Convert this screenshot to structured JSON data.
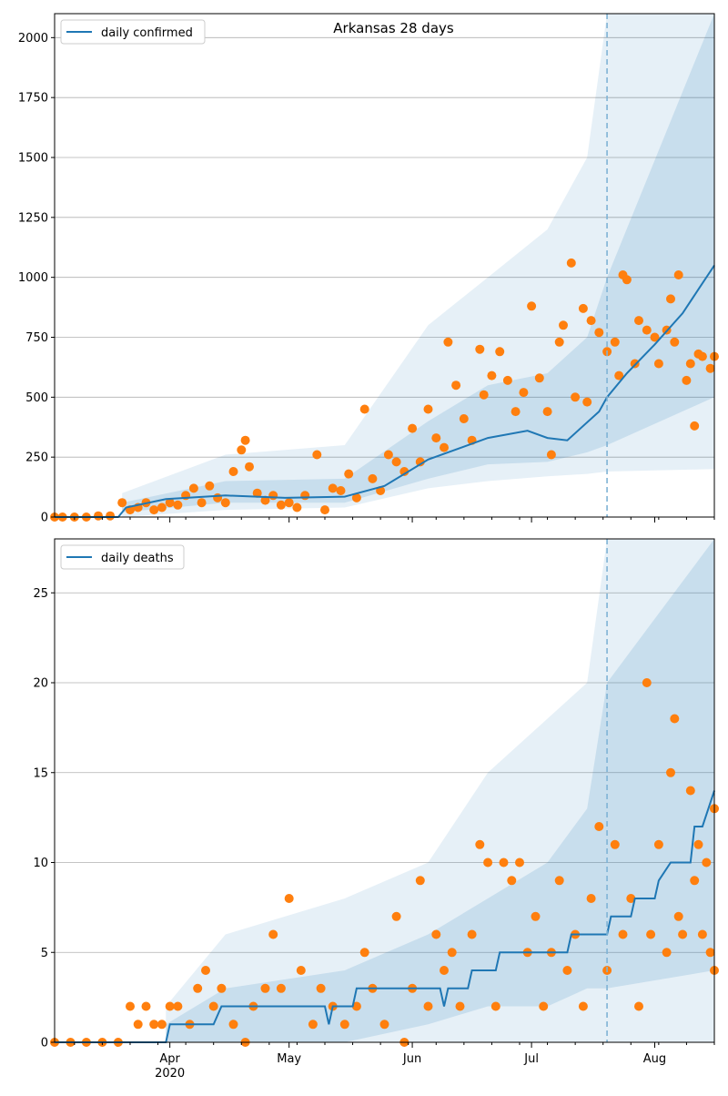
{
  "chart_data": [
    {
      "type": "line",
      "title": "Arkansas 28 days",
      "legend": {
        "position": "top-left",
        "label": "daily confirmed"
      },
      "series_color": "#1f77b4",
      "points_color": "#ff7f0e",
      "grid": "y",
      "xlim": [
        "2020-03-03",
        "2020-08-16"
      ],
      "ylim": [
        0,
        2100
      ],
      "yticks": [
        "0",
        "250",
        "500",
        "750",
        "1000",
        "1250",
        "1500",
        "1750",
        "2000"
      ],
      "vline_date": "2020-07-20",
      "line": [
        [
          "2020-03-03",
          0
        ],
        [
          "2020-03-19",
          0
        ],
        [
          "2020-03-21",
          40
        ],
        [
          "2020-03-31",
          75
        ],
        [
          "2020-04-15",
          90
        ],
        [
          "2020-04-30",
          80
        ],
        [
          "2020-05-15",
          85
        ],
        [
          "2020-05-25",
          130
        ],
        [
          "2020-06-05",
          240
        ],
        [
          "2020-06-20",
          330
        ],
        [
          "2020-06-30",
          360
        ],
        [
          "2020-07-05",
          330
        ],
        [
          "2020-07-10",
          320
        ],
        [
          "2020-07-18",
          440
        ],
        [
          "2020-07-20",
          500
        ],
        [
          "2020-07-25",
          600
        ],
        [
          "2020-08-01",
          720
        ],
        [
          "2020-08-08",
          850
        ],
        [
          "2020-08-12",
          950
        ],
        [
          "2020-08-16",
          1050
        ]
      ],
      "band_outer": [
        [
          "2020-03-20",
          0,
          100
        ],
        [
          "2020-04-15",
          30,
          260
        ],
        [
          "2020-05-15",
          40,
          300
        ],
        [
          "2020-06-05",
          120,
          800
        ],
        [
          "2020-06-20",
          150,
          1000
        ],
        [
          "2020-07-05",
          170,
          1200
        ],
        [
          "2020-07-15",
          180,
          1500
        ],
        [
          "2020-07-20",
          190,
          2100
        ],
        [
          "2020-08-16",
          200,
          2100
        ]
      ],
      "band_inner": [
        [
          "2020-03-20",
          20,
          60
        ],
        [
          "2020-04-15",
          60,
          150
        ],
        [
          "2020-05-15",
          60,
          160
        ],
        [
          "2020-06-05",
          160,
          400
        ],
        [
          "2020-06-20",
          220,
          550
        ],
        [
          "2020-07-05",
          230,
          600
        ],
        [
          "2020-07-15",
          270,
          750
        ],
        [
          "2020-07-20",
          300,
          1000
        ],
        [
          "2020-08-16",
          500,
          2100
        ]
      ],
      "points": [
        [
          "2020-03-03",
          0
        ],
        [
          "2020-03-05",
          0
        ],
        [
          "2020-03-08",
          0
        ],
        [
          "2020-03-11",
          0
        ],
        [
          "2020-03-14",
          5
        ],
        [
          "2020-03-17",
          5
        ],
        [
          "2020-03-20",
          60
        ],
        [
          "2020-03-22",
          30
        ],
        [
          "2020-03-24",
          40
        ],
        [
          "2020-03-26",
          60
        ],
        [
          "2020-03-28",
          30
        ],
        [
          "2020-03-30",
          40
        ],
        [
          "2020-04-01",
          60
        ],
        [
          "2020-04-03",
          50
        ],
        [
          "2020-04-05",
          90
        ],
        [
          "2020-04-07",
          120
        ],
        [
          "2020-04-09",
          60
        ],
        [
          "2020-04-11",
          130
        ],
        [
          "2020-04-13",
          80
        ],
        [
          "2020-04-15",
          60
        ],
        [
          "2020-04-17",
          190
        ],
        [
          "2020-04-19",
          280
        ],
        [
          "2020-04-20",
          320
        ],
        [
          "2020-04-21",
          210
        ],
        [
          "2020-04-23",
          100
        ],
        [
          "2020-04-25",
          70
        ],
        [
          "2020-04-27",
          90
        ],
        [
          "2020-04-29",
          50
        ],
        [
          "2020-05-01",
          60
        ],
        [
          "2020-05-03",
          40
        ],
        [
          "2020-05-05",
          90
        ],
        [
          "2020-05-08",
          260
        ],
        [
          "2020-05-10",
          30
        ],
        [
          "2020-05-12",
          120
        ],
        [
          "2020-05-14",
          110
        ],
        [
          "2020-05-16",
          180
        ],
        [
          "2020-05-18",
          80
        ],
        [
          "2020-05-20",
          450
        ],
        [
          "2020-05-22",
          160
        ],
        [
          "2020-05-24",
          110
        ],
        [
          "2020-05-26",
          260
        ],
        [
          "2020-05-28",
          230
        ],
        [
          "2020-05-30",
          190
        ],
        [
          "2020-06-01",
          370
        ],
        [
          "2020-06-03",
          230
        ],
        [
          "2020-06-05",
          450
        ],
        [
          "2020-06-07",
          330
        ],
        [
          "2020-06-09",
          290
        ],
        [
          "2020-06-10",
          730
        ],
        [
          "2020-06-12",
          550
        ],
        [
          "2020-06-14",
          410
        ],
        [
          "2020-06-16",
          320
        ],
        [
          "2020-06-18",
          700
        ],
        [
          "2020-06-19",
          510
        ],
        [
          "2020-06-21",
          590
        ],
        [
          "2020-06-23",
          690
        ],
        [
          "2020-06-25",
          570
        ],
        [
          "2020-06-27",
          440
        ],
        [
          "2020-06-29",
          520
        ],
        [
          "2020-07-01",
          880
        ],
        [
          "2020-07-03",
          580
        ],
        [
          "2020-07-05",
          440
        ],
        [
          "2020-07-06",
          260
        ],
        [
          "2020-07-08",
          730
        ],
        [
          "2020-07-09",
          800
        ],
        [
          "2020-07-11",
          1060
        ],
        [
          "2020-07-12",
          500
        ],
        [
          "2020-07-14",
          870
        ],
        [
          "2020-07-15",
          480
        ],
        [
          "2020-07-16",
          820
        ],
        [
          "2020-07-18",
          770
        ],
        [
          "2020-07-20",
          690
        ],
        [
          "2020-07-22",
          730
        ],
        [
          "2020-07-23",
          590
        ],
        [
          "2020-07-24",
          1010
        ],
        [
          "2020-07-25",
          990
        ],
        [
          "2020-07-27",
          640
        ],
        [
          "2020-07-28",
          820
        ],
        [
          "2020-07-30",
          780
        ],
        [
          "2020-08-01",
          750
        ],
        [
          "2020-08-02",
          640
        ],
        [
          "2020-08-04",
          780
        ],
        [
          "2020-08-05",
          910
        ],
        [
          "2020-08-06",
          730
        ],
        [
          "2020-08-07",
          1010
        ],
        [
          "2020-08-09",
          570
        ],
        [
          "2020-08-10",
          640
        ],
        [
          "2020-08-11",
          380
        ],
        [
          "2020-08-12",
          680
        ],
        [
          "2020-08-13",
          670
        ],
        [
          "2020-08-15",
          620
        ],
        [
          "2020-08-16",
          670
        ]
      ]
    },
    {
      "type": "line",
      "title": "",
      "legend": {
        "position": "top-left",
        "label": "daily deaths"
      },
      "series_color": "#1f77b4",
      "points_color": "#ff7f0e",
      "grid": "y",
      "xlim": [
        "2020-03-03",
        "2020-08-16"
      ],
      "ylim": [
        0,
        28
      ],
      "yticks": [
        "0",
        "5",
        "10",
        "15",
        "20",
        "25"
      ],
      "xticks": [
        "Apr",
        "May",
        "Jun",
        "Jul",
        "Aug"
      ],
      "xyear": "2020",
      "vline_date": "2020-07-20",
      "line": [
        [
          "2020-03-03",
          0
        ],
        [
          "2020-03-31",
          0
        ],
        [
          "2020-04-01",
          1
        ],
        [
          "2020-04-12",
          1
        ],
        [
          "2020-04-14",
          2
        ],
        [
          "2020-05-10",
          2
        ],
        [
          "2020-05-11",
          1
        ],
        [
          "2020-05-12",
          2
        ],
        [
          "2020-05-17",
          2
        ],
        [
          "2020-05-18",
          3
        ],
        [
          "2020-06-08",
          3
        ],
        [
          "2020-06-09",
          2
        ],
        [
          "2020-06-10",
          3
        ],
        [
          "2020-06-15",
          3
        ],
        [
          "2020-06-16",
          4
        ],
        [
          "2020-06-22",
          4
        ],
        [
          "2020-06-23",
          5
        ],
        [
          "2020-07-10",
          5
        ],
        [
          "2020-07-11",
          6
        ],
        [
          "2020-07-20",
          6
        ],
        [
          "2020-07-21",
          7
        ],
        [
          "2020-07-26",
          7
        ],
        [
          "2020-07-27",
          8
        ],
        [
          "2020-08-01",
          8
        ],
        [
          "2020-08-02",
          9
        ],
        [
          "2020-08-05",
          10
        ],
        [
          "2020-08-10",
          10
        ],
        [
          "2020-08-11",
          12
        ],
        [
          "2020-08-13",
          12
        ],
        [
          "2020-08-16",
          14
        ]
      ],
      "band_outer": [
        [
          "2020-03-31",
          0,
          2
        ],
        [
          "2020-04-15",
          0,
          6
        ],
        [
          "2020-05-15",
          0,
          8
        ],
        [
          "2020-06-05",
          0,
          10
        ],
        [
          "2020-06-20",
          0,
          15
        ],
        [
          "2020-07-05",
          0,
          18
        ],
        [
          "2020-07-15",
          0,
          20
        ],
        [
          "2020-07-20",
          0,
          28
        ],
        [
          "2020-08-16",
          0,
          28
        ]
      ],
      "band_inner": [
        [
          "2020-03-31",
          0,
          1
        ],
        [
          "2020-04-15",
          0,
          3
        ],
        [
          "2020-05-15",
          0,
          4
        ],
        [
          "2020-06-05",
          1,
          6
        ],
        [
          "2020-06-20",
          2,
          8
        ],
        [
          "2020-07-05",
          2,
          10
        ],
        [
          "2020-07-15",
          3,
          13
        ],
        [
          "2020-07-20",
          3,
          20
        ],
        [
          "2020-08-16",
          4,
          28
        ]
      ],
      "points": [
        [
          "2020-03-03",
          0
        ],
        [
          "2020-03-07",
          0
        ],
        [
          "2020-03-11",
          0
        ],
        [
          "2020-03-15",
          0
        ],
        [
          "2020-03-19",
          0
        ],
        [
          "2020-03-22",
          2
        ],
        [
          "2020-03-24",
          1
        ],
        [
          "2020-03-26",
          2
        ],
        [
          "2020-03-28",
          1
        ],
        [
          "2020-03-30",
          1
        ],
        [
          "2020-04-01",
          2
        ],
        [
          "2020-04-03",
          2
        ],
        [
          "2020-04-06",
          1
        ],
        [
          "2020-04-08",
          3
        ],
        [
          "2020-04-10",
          4
        ],
        [
          "2020-04-12",
          2
        ],
        [
          "2020-04-14",
          3
        ],
        [
          "2020-04-17",
          1
        ],
        [
          "2020-04-20",
          0
        ],
        [
          "2020-04-22",
          2
        ],
        [
          "2020-04-25",
          3
        ],
        [
          "2020-04-27",
          6
        ],
        [
          "2020-04-29",
          3
        ],
        [
          "2020-05-01",
          8
        ],
        [
          "2020-05-04",
          4
        ],
        [
          "2020-05-07",
          1
        ],
        [
          "2020-05-09",
          3
        ],
        [
          "2020-05-12",
          2
        ],
        [
          "2020-05-15",
          1
        ],
        [
          "2020-05-18",
          2
        ],
        [
          "2020-05-20",
          5
        ],
        [
          "2020-05-22",
          3
        ],
        [
          "2020-05-25",
          1
        ],
        [
          "2020-05-28",
          7
        ],
        [
          "2020-05-30",
          0
        ],
        [
          "2020-06-01",
          3
        ],
        [
          "2020-06-03",
          9
        ],
        [
          "2020-06-05",
          2
        ],
        [
          "2020-06-07",
          6
        ],
        [
          "2020-06-09",
          4
        ],
        [
          "2020-06-11",
          5
        ],
        [
          "2020-06-13",
          2
        ],
        [
          "2020-06-16",
          6
        ],
        [
          "2020-06-18",
          11
        ],
        [
          "2020-06-20",
          10
        ],
        [
          "2020-06-22",
          2
        ],
        [
          "2020-06-24",
          10
        ],
        [
          "2020-06-26",
          9
        ],
        [
          "2020-06-28",
          10
        ],
        [
          "2020-06-30",
          5
        ],
        [
          "2020-07-02",
          7
        ],
        [
          "2020-07-04",
          2
        ],
        [
          "2020-07-06",
          5
        ],
        [
          "2020-07-08",
          9
        ],
        [
          "2020-07-10",
          4
        ],
        [
          "2020-07-12",
          6
        ],
        [
          "2020-07-14",
          2
        ],
        [
          "2020-07-16",
          8
        ],
        [
          "2020-07-18",
          12
        ],
        [
          "2020-07-20",
          4
        ],
        [
          "2020-07-22",
          11
        ],
        [
          "2020-07-24",
          6
        ],
        [
          "2020-07-26",
          8
        ],
        [
          "2020-07-28",
          2
        ],
        [
          "2020-07-30",
          20
        ],
        [
          "2020-07-31",
          6
        ],
        [
          "2020-08-02",
          11
        ],
        [
          "2020-08-04",
          5
        ],
        [
          "2020-08-05",
          15
        ],
        [
          "2020-08-06",
          18
        ],
        [
          "2020-08-07",
          7
        ],
        [
          "2020-08-08",
          6
        ],
        [
          "2020-08-10",
          14
        ],
        [
          "2020-08-11",
          9
        ],
        [
          "2020-08-12",
          11
        ],
        [
          "2020-08-13",
          6
        ],
        [
          "2020-08-14",
          10
        ],
        [
          "2020-08-15",
          5
        ],
        [
          "2020-08-16",
          13
        ],
        [
          "2020-08-16",
          4
        ]
      ]
    }
  ]
}
